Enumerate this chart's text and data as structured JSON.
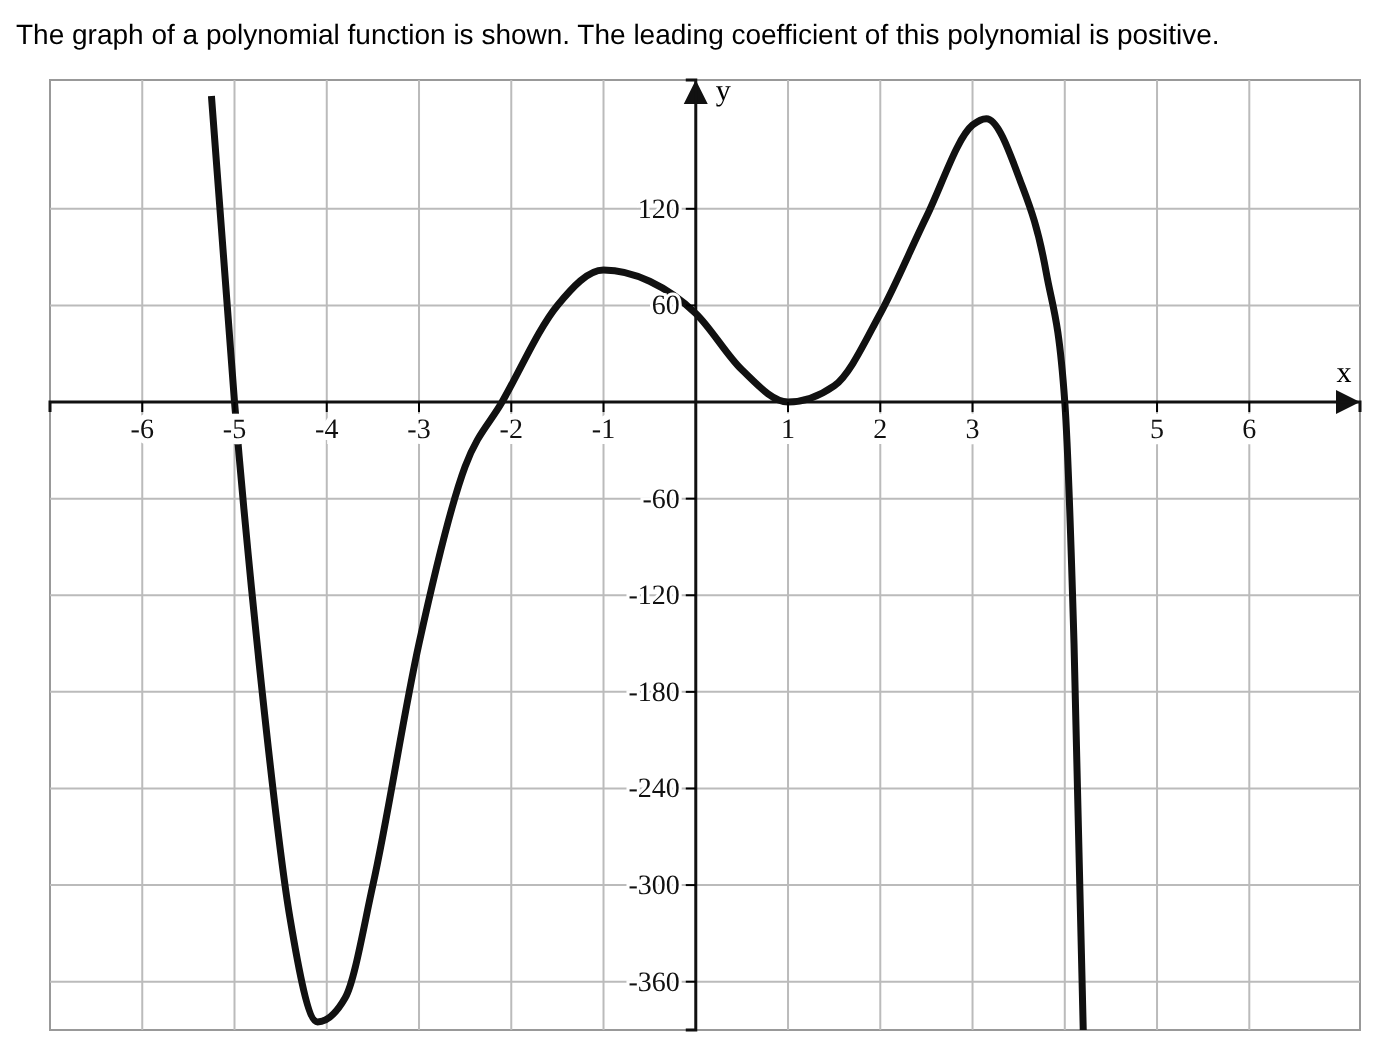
{
  "chart_data": {
    "type": "line",
    "title": "The graph of a polynomial function is shown. The leading coefficient of this polynomial is positive.",
    "xlabel": "x",
    "ylabel": "y",
    "xlim": [
      -7,
      7.2
    ],
    "ylim": [
      -390,
      200
    ],
    "xticks": [
      -6,
      -5,
      -4,
      -3,
      -2,
      -1,
      1,
      2,
      3,
      {
        "value": 4,
        "label": null
      },
      5,
      6
    ],
    "yticks": [
      -360,
      -300,
      -240,
      -180,
      -120,
      -60,
      60,
      120
    ],
    "grid": true,
    "line_style": "solid",
    "marker": "none",
    "x": [
      -5.25,
      -5,
      -4.7,
      -4.4,
      -4.1,
      -3.8,
      -3.5,
      -3,
      -2.5,
      -2.1,
      -1.5,
      -1,
      -0.5,
      0,
      0.5,
      1,
      1.5,
      2,
      2.5,
      3,
      3.15,
      3.5,
      3.8,
      4,
      4.1,
      4.2
    ],
    "series": [
      {
        "color": "#111111",
        "values": [
          190,
          0,
          -180,
          -320,
          -385,
          -370,
          -300,
          -150,
          -40,
          0,
          60,
          82,
          75,
          55,
          20,
          0,
          10,
          55,
          115,
          172,
          176,
          140,
          80,
          0,
          -150,
          -390
        ]
      }
    ]
  }
}
